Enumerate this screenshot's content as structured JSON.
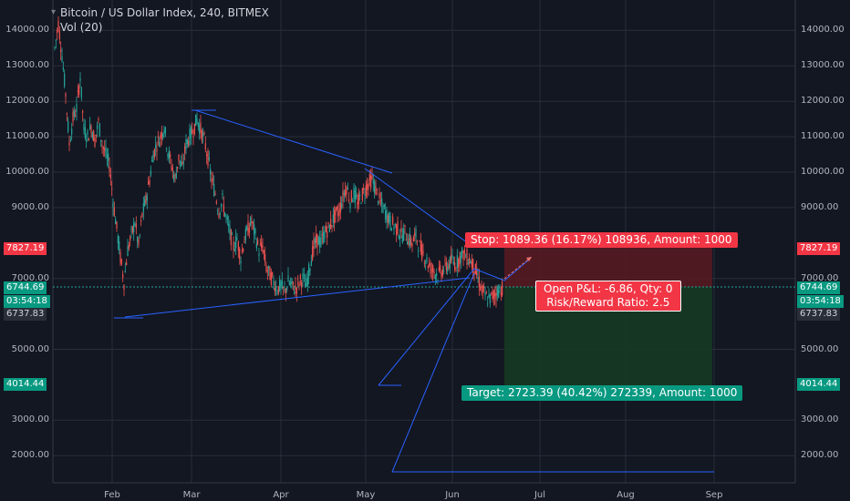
{
  "header": {
    "title": "Bitcoin / US Dollar Index, 240, BITMEX",
    "volume_label": "Vol (20)"
  },
  "y_axis": {
    "ticks": [
      "14000.00",
      "13000.00",
      "12000.00",
      "11000.00",
      "10000.00",
      "9000.00",
      "7000.00",
      "5000.00",
      "3000.00",
      "2000.00"
    ],
    "tick_values": [
      14000,
      13000,
      12000,
      11000,
      10000,
      9000,
      7000,
      5000,
      3000,
      2000
    ]
  },
  "x_axis": {
    "months": [
      "Feb",
      "Mar",
      "Apr",
      "May",
      "Jun",
      "Jul",
      "Aug",
      "Sep"
    ]
  },
  "price_tags": {
    "stop_level": "7827.19",
    "current_price": "6744.69",
    "countdown": "03:54:18",
    "last_level": "6737.83",
    "target_level": "4014.44"
  },
  "position": {
    "stop_label": "Stop: 1089.36 (16.17%) 108936, Amount: 1000",
    "pnl_label": "Open P&L: -6.86, Qty: 0",
    "rr_label": "Risk/Reward Ratio: 2.5",
    "target_label": "Target: 2723.39 (40.42%) 272339, Amount: 1000"
  },
  "colors": {
    "background": "#131722",
    "grid": "#2a2e39",
    "up_candle": "#26a69a",
    "down_candle": "#ef5350",
    "drawing": "#2962ff",
    "stop_zone": "#5b1a22",
    "target_zone": "#163a22",
    "stop_tag": "#f23645",
    "target_tag": "#089981"
  }
}
